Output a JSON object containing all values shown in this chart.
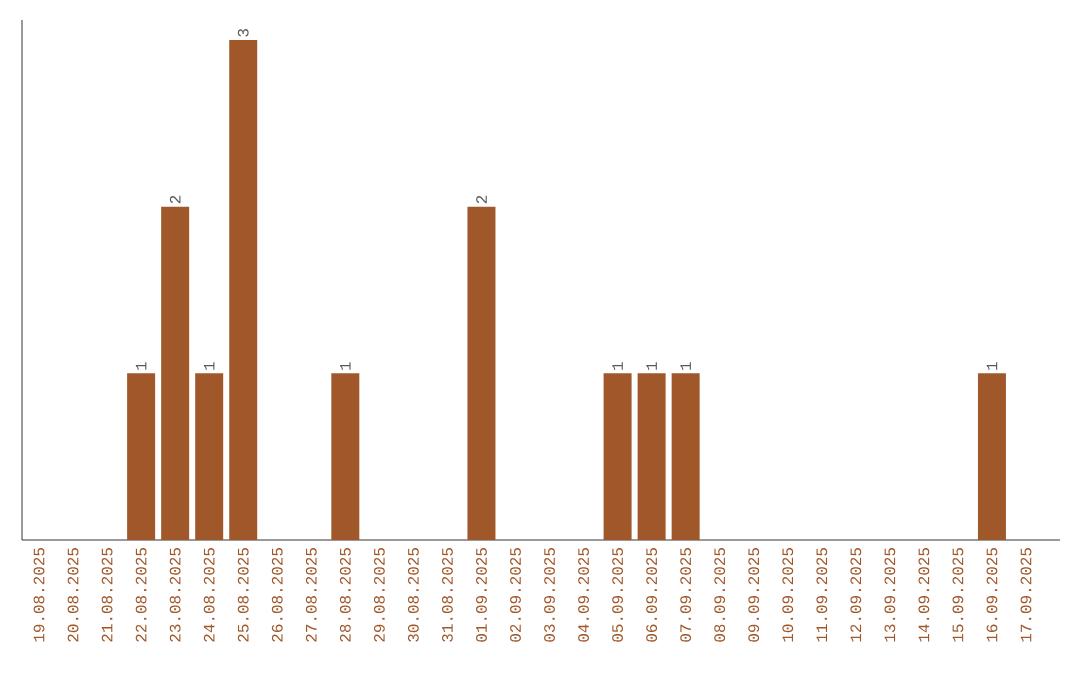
{
  "chart_data": {
    "type": "bar",
    "categories": [
      "19.08.2025",
      "20.08.2025",
      "21.08.2025",
      "22.08.2025",
      "23.08.2025",
      "24.08.2025",
      "25.08.2025",
      "26.08.2025",
      "27.08.2025",
      "28.08.2025",
      "29.08.2025",
      "30.08.2025",
      "31.08.2025",
      "01.09.2025",
      "02.09.2025",
      "03.09.2025",
      "04.09.2025",
      "05.09.2025",
      "06.09.2025",
      "07.09.2025",
      "08.09.2025",
      "09.09.2025",
      "10.09.2025",
      "11.09.2025",
      "12.09.2025",
      "13.09.2025",
      "14.09.2025",
      "15.09.2025",
      "16.09.2025",
      "17.09.2025"
    ],
    "values": [
      0,
      0,
      0,
      1,
      2,
      1,
      3,
      0,
      0,
      1,
      0,
      0,
      0,
      2,
      0,
      0,
      0,
      1,
      1,
      1,
      0,
      0,
      0,
      0,
      0,
      0,
      0,
      0,
      1,
      0
    ],
    "value_labels": [
      null,
      null,
      null,
      "1",
      "2",
      "1",
      "3",
      null,
      null,
      "1",
      null,
      null,
      null,
      "2",
      null,
      null,
      null,
      "1",
      "1",
      "1",
      null,
      null,
      null,
      null,
      null,
      null,
      null,
      null,
      "1",
      null
    ],
    "color": "#a0582a"
  }
}
